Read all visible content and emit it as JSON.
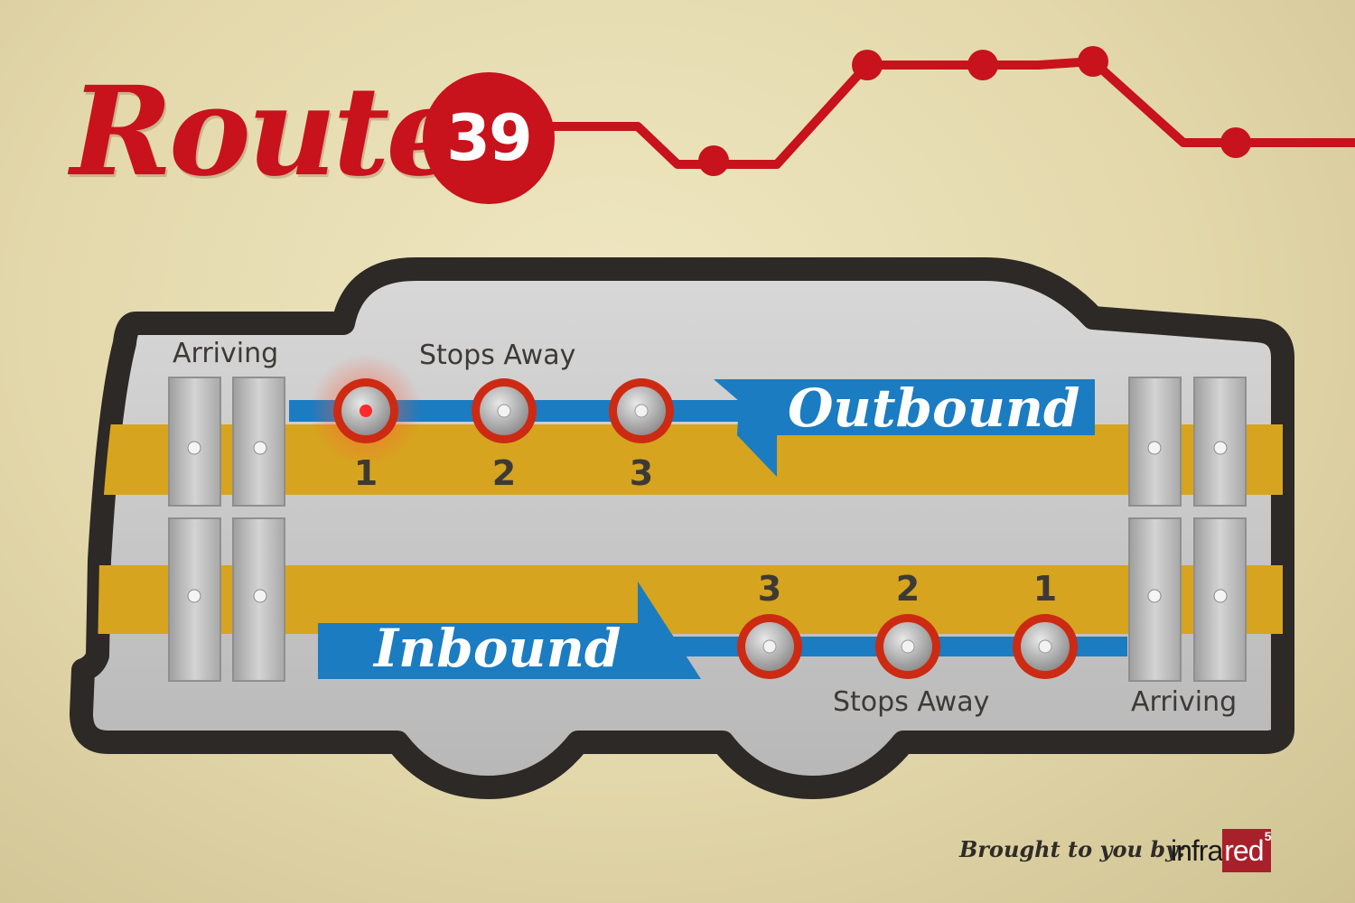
{
  "header": {
    "title": "Route",
    "route_number": "39"
  },
  "outbound": {
    "direction_label": "Outbound",
    "arriving_label": "Arriving",
    "stops_away_label": "Stops Away",
    "stops": [
      "1",
      "2",
      "3"
    ],
    "active_stop": "1"
  },
  "inbound": {
    "direction_label": "Inbound",
    "arriving_label": "Arriving",
    "stops_away_label": "Stops Away",
    "stops": [
      "3",
      "2",
      "1"
    ],
    "active_stop": null
  },
  "footer": {
    "credit": "Brought to you by:",
    "logo_prefix": "infra",
    "logo_highlight": "red",
    "logo_superscript": "5"
  },
  "colors": {
    "route_red": "#c8121c",
    "band_yellow": "#d6a41f",
    "direction_blue": "#1b7cc1",
    "bus_body": "#c9c9c9",
    "bus_outline": "#2c2926",
    "lamp_ring": "#cc2a12",
    "lamp_active": "#ff2a2a"
  }
}
